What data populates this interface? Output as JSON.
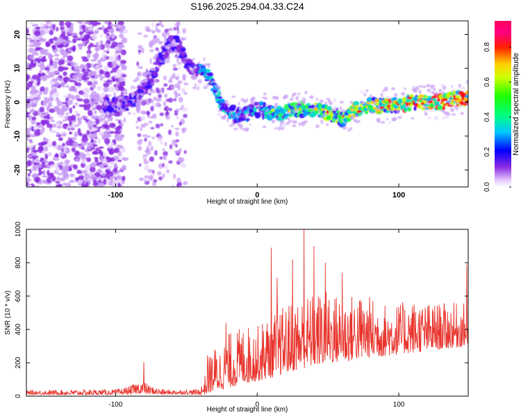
{
  "title": "S196.2025.294.04.33.C24",
  "chart_data": [
    {
      "type": "heatmap",
      "name": "spectrogram",
      "xlabel": "Height of straight line (km)",
      "ylabel": "Frequency (Hz)",
      "xlim": [
        -163,
        149
      ],
      "ylim": [
        -25,
        24
      ],
      "xticks": [
        -100,
        0,
        100
      ],
      "xtick_labels": [
        "-100",
        "0",
        "100"
      ],
      "yticks": [
        -20,
        -10,
        0,
        10,
        20
      ],
      "ytick_labels": [
        "-20",
        "-10",
        "0",
        "10",
        "20"
      ],
      "colorbar": {
        "label": "Normalized spectral amplitude",
        "range": [
          0,
          0.95
        ],
        "ticks": [
          0.0,
          0.2,
          0.4,
          0.6,
          0.8
        ],
        "tick_labels": [
          "0.0",
          "0.2",
          "0.4",
          "0.6",
          "0.8"
        ]
      },
      "ridge": {
        "x": [
          -105,
          -98,
          -90,
          -82,
          -75,
          -68,
          -62,
          -56,
          -50,
          -45,
          -40,
          -35,
          -30,
          -26,
          -22,
          -18,
          -14,
          -10,
          -5,
          0,
          10,
          20,
          30,
          40,
          50,
          60,
          70,
          80,
          90,
          100,
          110,
          120,
          130,
          140,
          149
        ],
        "y": [
          -1,
          -1,
          0,
          3,
          7,
          13,
          17,
          18,
          12,
          9,
          9,
          8,
          4,
          0,
          -2,
          -3,
          -4,
          -4,
          -3,
          -2,
          -3,
          -3,
          -2,
          -2,
          -3,
          -5,
          -2,
          -1,
          -1,
          -1,
          0,
          0,
          0,
          1,
          1
        ]
      }
    },
    {
      "type": "line",
      "name": "snr",
      "xlabel": "Height of straight line (km)",
      "ylabel": "SNR (10 * v/v)",
      "xlim": [
        -163,
        149
      ],
      "ylim": [
        0,
        1000
      ],
      "xticks": [
        -100,
        0,
        100
      ],
      "xtick_labels": [
        "-100",
        "0",
        "100"
      ],
      "yticks": [
        0,
        200,
        400,
        600,
        800,
        1000
      ],
      "ytick_labels": [
        "0",
        "200",
        "400",
        "600",
        "800",
        "1000"
      ],
      "color": "#e8332b",
      "envelope": {
        "x": [
          -163,
          -120,
          -100,
          -90,
          -82,
          -75,
          -65,
          -55,
          -45,
          -40,
          -36,
          -34,
          -30,
          -25,
          -20,
          -15,
          -10,
          -5,
          0,
          5,
          10,
          15,
          20,
          30,
          40,
          50,
          60,
          70,
          80,
          90,
          100,
          110,
          120,
          130,
          140,
          149
        ],
        "lower": [
          10,
          8,
          10,
          12,
          15,
          12,
          10,
          12,
          10,
          8,
          10,
          20,
          30,
          40,
          50,
          60,
          80,
          80,
          90,
          100,
          110,
          120,
          140,
          160,
          180,
          200,
          200,
          220,
          230,
          240,
          250,
          260,
          270,
          280,
          290,
          300
        ],
        "upper": [
          35,
          40,
          40,
          60,
          100,
          60,
          40,
          40,
          40,
          50,
          150,
          250,
          300,
          300,
          380,
          400,
          420,
          430,
          420,
          470,
          500,
          520,
          550,
          600,
          620,
          640,
          600,
          620,
          600,
          560,
          560,
          580,
          560,
          560,
          560,
          560
        ]
      },
      "peaks": {
        "x": [
          -80,
          -35,
          -22,
          10,
          14,
          25,
          33,
          40,
          48,
          60,
          148
        ],
        "y": [
          205,
          245,
          440,
          890,
          710,
          820,
          1000,
          900,
          800,
          740,
          790
        ]
      }
    }
  ]
}
